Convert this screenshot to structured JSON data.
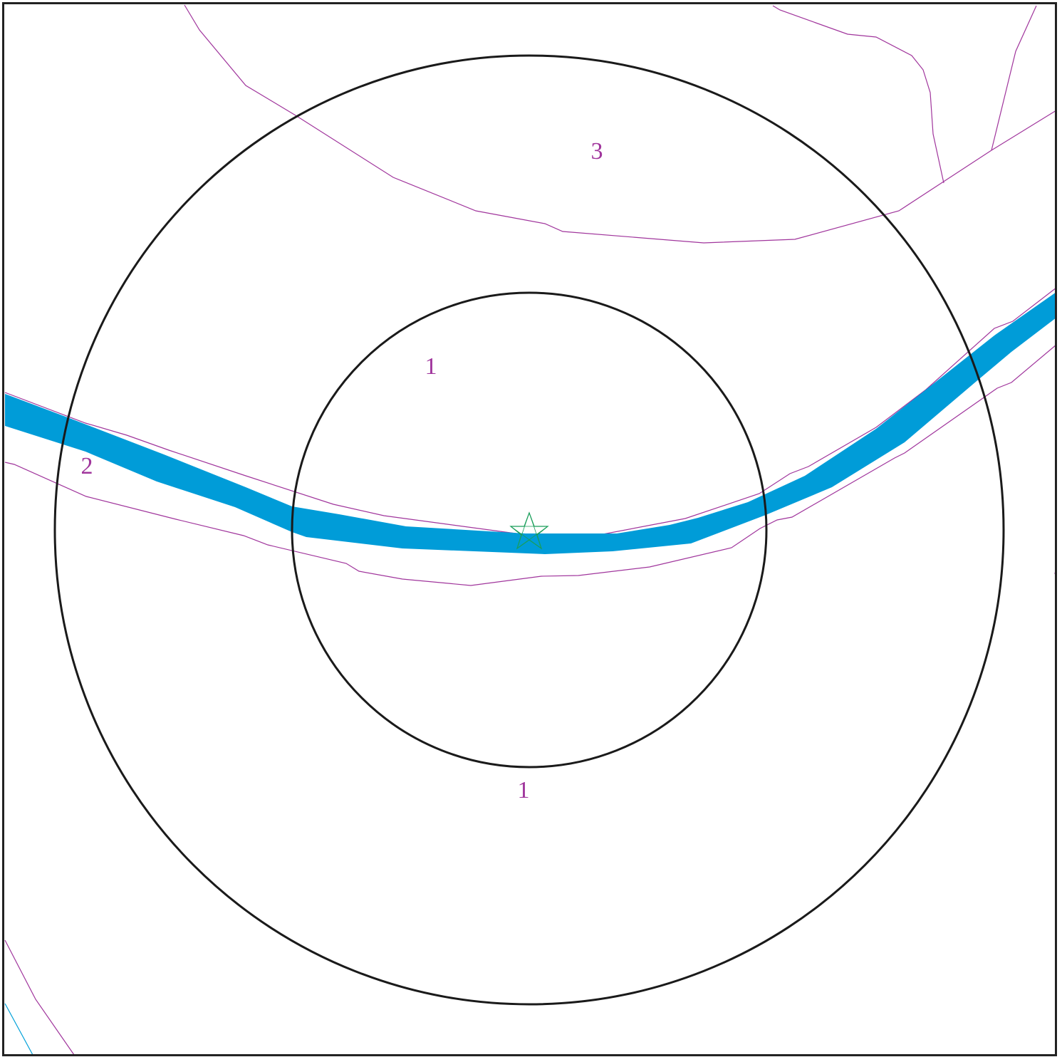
{
  "map": {
    "colors": {
      "frame": "#222222",
      "ring": "#1a1a1a",
      "boundary": "#a0359c",
      "label": "#a0359c",
      "river": "#009cd8",
      "stream": "#00a0d8",
      "marker": "#1a9e5a",
      "background": "#ffffff"
    },
    "zone_labels": [
      {
        "id": "zone-label-3",
        "text": "3"
      },
      {
        "id": "zone-label-1-upper",
        "text": "1"
      },
      {
        "id": "zone-label-2",
        "text": "2"
      },
      {
        "id": "zone-label-1-lower",
        "text": "1"
      }
    ],
    "features": {
      "buffer_rings": [
        "inner-buffer-ring",
        "outer-buffer-ring"
      ],
      "center_marker_icon": "star-icon",
      "river": "river",
      "zone_boundaries": "zone-boundary-line"
    }
  }
}
